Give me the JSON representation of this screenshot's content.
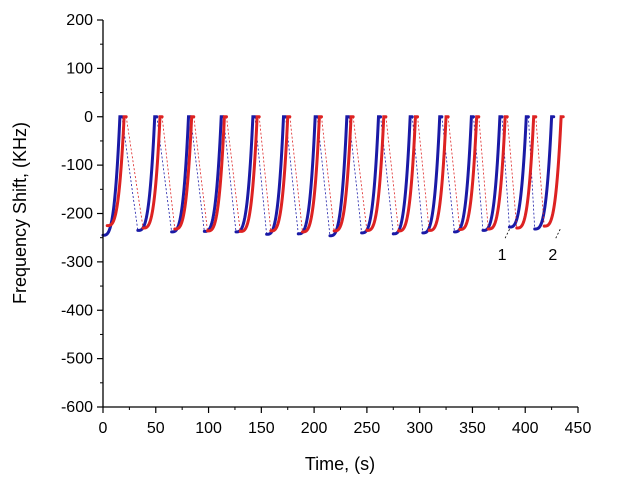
{
  "chart_data": {
    "type": "line",
    "xlabel": "Time, (s)",
    "ylabel": "Frequency Shift, (KHz)",
    "xlim": [
      0,
      450
    ],
    "ylim": [
      -600,
      200
    ],
    "xticks": [
      0,
      50,
      100,
      150,
      200,
      250,
      300,
      350,
      400,
      450
    ],
    "yticks": [
      200,
      100,
      0,
      -100,
      -200,
      -300,
      -400,
      -500,
      -600
    ],
    "grid": false,
    "legend": "none",
    "cycle_shape": {
      "minimum": -240,
      "maximum": 0,
      "rise_duration_s": 16
    },
    "series": [
      {
        "color": "#1a1aa6",
        "cycles": [
          {
            "start": 0,
            "min": -245
          },
          {
            "start": 33,
            "min": -235
          },
          {
            "start": 65,
            "min": -238
          },
          {
            "start": 96,
            "min": -237
          },
          {
            "start": 126,
            "min": -238
          },
          {
            "start": 155,
            "min": -243
          },
          {
            "start": 185,
            "min": -242
          },
          {
            "start": 215,
            "min": -246
          },
          {
            "start": 245,
            "min": -240
          },
          {
            "start": 275,
            "min": -242
          },
          {
            "start": 303,
            "min": -240
          },
          {
            "start": 333,
            "min": -238
          },
          {
            "start": 360,
            "min": -235
          },
          {
            "start": 385,
            "min": -228
          },
          {
            "start": 409,
            "min": -232
          }
        ]
      },
      {
        "color": "#dd2222",
        "cycles": [
          {
            "start": 4,
            "min": -225
          },
          {
            "start": 38,
            "min": -230
          },
          {
            "start": 68,
            "min": -232
          },
          {
            "start": 99,
            "min": -236
          },
          {
            "start": 130,
            "min": -237
          },
          {
            "start": 159,
            "min": -236
          },
          {
            "start": 189,
            "min": -238
          },
          {
            "start": 219,
            "min": -236
          },
          {
            "start": 250,
            "min": -235
          },
          {
            "start": 280,
            "min": -236
          },
          {
            "start": 309,
            "min": -235
          },
          {
            "start": 338,
            "min": -233
          },
          {
            "start": 365,
            "min": -232
          },
          {
            "start": 392,
            "min": -230
          },
          {
            "start": 418,
            "min": -226
          }
        ]
      }
    ],
    "annotations": [
      {
        "text": "1",
        "x": 380,
        "y": -280
      },
      {
        "text": "2",
        "x": 428,
        "y": -280
      }
    ]
  }
}
